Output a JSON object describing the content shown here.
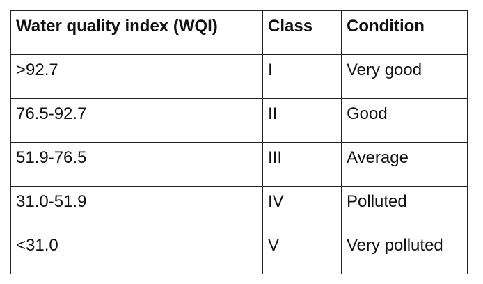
{
  "table": {
    "header": [
      "Water quality index (WQI)",
      "Class",
      "Condition"
    ],
    "rows": [
      [
        ">92.7",
        "I",
        "Very good"
      ],
      [
        "76.5-92.7",
        "II",
        "Good"
      ],
      [
        "51.9-76.5",
        "III",
        "Average"
      ],
      [
        "31.0-51.9",
        "IV",
        "Polluted"
      ],
      [
        "<31.0",
        "V",
        "Very polluted"
      ]
    ]
  }
}
